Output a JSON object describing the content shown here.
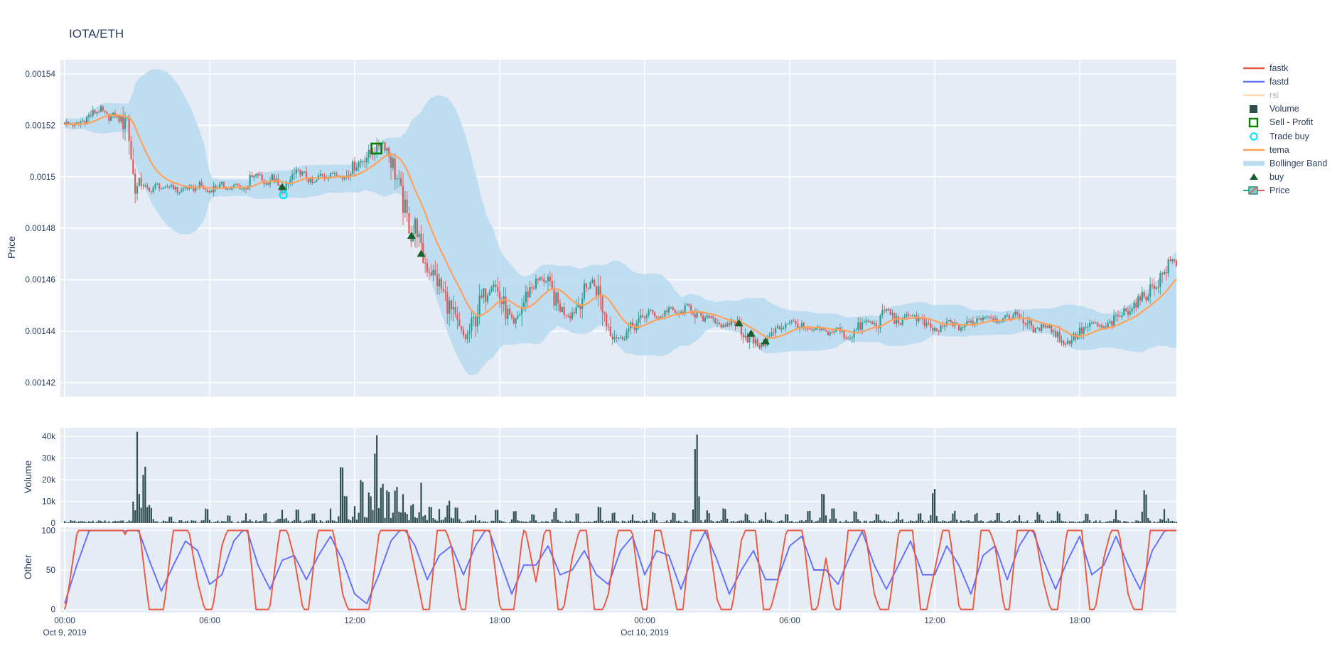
{
  "title": "IOTA/ETH",
  "colors": {
    "plot_bg": "#E5ECF6",
    "grid": "#FFFFFF",
    "text": "#2a3f5f",
    "candle_up": "#2A9D8F",
    "candle_down": "#E45756",
    "tema": "#FFA15A",
    "bollinger_fill": "#B9DCF1",
    "fastk": "#EF553B",
    "fastd": "#636EFA",
    "volume_bar": "#2F4F4F",
    "buy_marker": "#15602B",
    "sell_profit": "#008000",
    "trade_buy": "#00E5FF",
    "rsi_muted_line": "#FFD9B0",
    "rsi_muted_text": "#AFB9C5"
  },
  "legend": {
    "items": [
      {
        "id": "fastk",
        "label": "fastk",
        "glyph": "line",
        "color": "#EF553B",
        "text_color": "#2a3f5f"
      },
      {
        "id": "fastd",
        "label": "fastd",
        "glyph": "line",
        "color": "#636EFA",
        "text_color": "#2a3f5f"
      },
      {
        "id": "rsi",
        "label": "rsi",
        "glyph": "line",
        "color": "#FFD9B0",
        "text_color": "#AFB9C5",
        "muted": true
      },
      {
        "id": "volume",
        "label": "Volume",
        "glyph": "square-filled",
        "color": "#2F4F4F",
        "text_color": "#2a3f5f"
      },
      {
        "id": "sell-profit",
        "label": "Sell - Profit",
        "glyph": "square-open",
        "color": "#008000",
        "text_color": "#2a3f5f"
      },
      {
        "id": "trade-buy",
        "label": "Trade buy",
        "glyph": "circle-open",
        "color": "#00E5FF",
        "text_color": "#2a3f5f"
      },
      {
        "id": "tema",
        "label": "tema",
        "glyph": "line",
        "color": "#FFA15A",
        "text_color": "#2a3f5f"
      },
      {
        "id": "bollinger",
        "label": "Bollinger Band",
        "glyph": "band",
        "color": "#B9DCF1",
        "text_color": "#2a3f5f"
      },
      {
        "id": "buy",
        "label": "buy",
        "glyph": "triangle",
        "color": "#15602B",
        "text_color": "#2a3f5f"
      },
      {
        "id": "price",
        "label": "Price",
        "glyph": "candle",
        "color_up": "#2A9D8F",
        "color_down": "#E45756",
        "text_color": "#2a3f5f"
      }
    ]
  },
  "x_axis": {
    "t_min": 0,
    "t_max": 46,
    "hours_per_tick": 6,
    "ticks": [
      {
        "t": 0,
        "label": "00:00",
        "date": "Oct 9, 2019"
      },
      {
        "t": 6,
        "label": "06:00"
      },
      {
        "t": 12,
        "label": "12:00"
      },
      {
        "t": 18,
        "label": "18:00"
      },
      {
        "t": 24,
        "label": "00:00",
        "date": "Oct 10, 2019"
      },
      {
        "t": 30,
        "label": "06:00"
      },
      {
        "t": 36,
        "label": "12:00"
      },
      {
        "t": 42,
        "label": "18:00"
      }
    ]
  },
  "chart_data": [
    {
      "type": "candlestick",
      "name": "Price",
      "ylabel": "Price",
      "price_unit": "1e-6 ETH (micro)",
      "candle_interval_minutes": 5,
      "y_ticks": [
        {
          "label": "0.00154",
          "value": 1540
        },
        {
          "label": "0.00152",
          "value": 1520
        },
        {
          "label": "0.0015",
          "value": 1500
        },
        {
          "label": "0.00148",
          "value": 1480
        },
        {
          "label": "0.00146",
          "value": 1460
        },
        {
          "label": "0.00144",
          "value": 1440
        },
        {
          "label": "0.00142",
          "value": 1420
        }
      ],
      "ylim_micro": [
        1414,
        1546
      ],
      "close_anchors": [
        [
          0,
          1521
        ],
        [
          0.4,
          1520
        ],
        [
          0.8,
          1522
        ],
        [
          1.2,
          1525
        ],
        [
          1.5,
          1526
        ],
        [
          1.8,
          1523
        ],
        [
          2.1,
          1524
        ],
        [
          2.4,
          1521
        ],
        [
          2.55,
          1526
        ],
        [
          2.7,
          1512
        ],
        [
          2.85,
          1499
        ],
        [
          3.0,
          1495
        ],
        [
          3.2,
          1498
        ],
        [
          3.5,
          1494
        ],
        [
          3.8,
          1497
        ],
        [
          4.1,
          1495
        ],
        [
          4.4,
          1497
        ],
        [
          4.7,
          1494
        ],
        [
          5.0,
          1496
        ],
        [
          5.3,
          1495
        ],
        [
          5.6,
          1497
        ],
        [
          5.9,
          1494
        ],
        [
          6.2,
          1496
        ],
        [
          6.5,
          1497
        ],
        [
          6.8,
          1495
        ],
        [
          7.1,
          1497
        ],
        [
          7.4,
          1495
        ],
        [
          7.7,
          1499
        ],
        [
          8.0,
          1501
        ],
        [
          8.3,
          1497
        ],
        [
          8.6,
          1500
        ],
        [
          8.9,
          1495
        ],
        [
          9.1,
          1494
        ],
        [
          9.4,
          1500
        ],
        [
          9.7,
          1502
        ],
        [
          10.0,
          1500
        ],
        [
          10.3,
          1497
        ],
        [
          10.6,
          1501
        ],
        [
          10.9,
          1500
        ],
        [
          11.2,
          1502
        ],
        [
          11.5,
          1499
        ],
        [
          11.8,
          1503
        ],
        [
          12.1,
          1505
        ],
        [
          12.5,
          1508
        ],
        [
          12.9,
          1511
        ],
        [
          13.1,
          1514
        ],
        [
          13.3,
          1512
        ],
        [
          13.5,
          1507
        ],
        [
          13.7,
          1501
        ],
        [
          13.9,
          1493
        ],
        [
          14.1,
          1486
        ],
        [
          14.35,
          1477
        ],
        [
          14.55,
          1482
        ],
        [
          14.75,
          1470
        ],
        [
          14.95,
          1466
        ],
        [
          15.2,
          1463
        ],
        [
          15.5,
          1458
        ],
        [
          15.8,
          1452
        ],
        [
          16.1,
          1445
        ],
        [
          16.35,
          1440
        ],
        [
          16.6,
          1437
        ],
        [
          16.9,
          1443
        ],
        [
          17.2,
          1451
        ],
        [
          17.5,
          1456
        ],
        [
          17.75,
          1459
        ],
        [
          18.0,
          1453
        ],
        [
          18.3,
          1447
        ],
        [
          18.6,
          1442
        ],
        [
          18.9,
          1449
        ],
        [
          19.2,
          1456
        ],
        [
          19.5,
          1459
        ],
        [
          19.75,
          1461
        ],
        [
          20.0,
          1458
        ],
        [
          20.3,
          1452
        ],
        [
          20.6,
          1448
        ],
        [
          20.9,
          1446
        ],
        [
          21.2,
          1450
        ],
        [
          21.5,
          1455
        ],
        [
          21.8,
          1460
        ],
        [
          22.1,
          1455
        ],
        [
          22.4,
          1444
        ],
        [
          22.7,
          1439
        ],
        [
          23.0,
          1437
        ],
        [
          23.4,
          1441
        ],
        [
          23.8,
          1444
        ],
        [
          24.2,
          1448
        ],
        [
          24.6,
          1445
        ],
        [
          25.0,
          1449
        ],
        [
          25.4,
          1446
        ],
        [
          25.8,
          1450
        ],
        [
          26.1,
          1447
        ],
        [
          26.4,
          1444
        ],
        [
          26.7,
          1446
        ],
        [
          27.0,
          1444
        ],
        [
          27.3,
          1441
        ],
        [
          27.6,
          1444
        ],
        [
          27.9,
          1442
        ],
        [
          28.2,
          1438
        ],
        [
          28.5,
          1436
        ],
        [
          28.8,
          1434
        ],
        [
          29.1,
          1437
        ],
        [
          29.4,
          1440
        ],
        [
          29.7,
          1442
        ],
        [
          30.0,
          1444
        ],
        [
          30.4,
          1442
        ],
        [
          30.8,
          1440
        ],
        [
          31.2,
          1441
        ],
        [
          31.6,
          1439
        ],
        [
          32.0,
          1441
        ],
        [
          32.4,
          1437
        ],
        [
          32.8,
          1441
        ],
        [
          33.2,
          1444
        ],
        [
          33.6,
          1442
        ],
        [
          34.0,
          1449
        ],
        [
          34.3,
          1445
        ],
        [
          34.6,
          1443
        ],
        [
          35.0,
          1447
        ],
        [
          35.4,
          1444
        ],
        [
          35.8,
          1441
        ],
        [
          36.2,
          1440
        ],
        [
          36.6,
          1444
        ],
        [
          37.0,
          1441
        ],
        [
          37.4,
          1443
        ],
        [
          37.8,
          1445
        ],
        [
          38.2,
          1446
        ],
        [
          38.6,
          1444
        ],
        [
          39.0,
          1445
        ],
        [
          39.4,
          1447
        ],
        [
          39.8,
          1443
        ],
        [
          40.2,
          1440
        ],
        [
          40.6,
          1443
        ],
        [
          41.0,
          1439
        ],
        [
          41.4,
          1435
        ],
        [
          41.8,
          1438
        ],
        [
          42.2,
          1441
        ],
        [
          42.6,
          1443
        ],
        [
          43.0,
          1441
        ],
        [
          43.4,
          1444
        ],
        [
          43.8,
          1447
        ],
        [
          44.2,
          1450
        ],
        [
          44.6,
          1453
        ],
        [
          44.9,
          1456
        ],
        [
          45.2,
          1459
        ],
        [
          45.5,
          1463
        ],
        [
          45.8,
          1468
        ],
        [
          46.0,
          1466
        ]
      ],
      "overlays": {
        "tema": {
          "type": "double-ema",
          "alpha": 0.18,
          "color": "#FFA15A"
        },
        "bollinger": {
          "type": "rolling-band",
          "window": 40,
          "sigma_mult": 2.1,
          "pad_micro": 1.1,
          "color": "#B9DCF1"
        }
      },
      "markers": {
        "buy_triangles": [
          [
            9.0,
            1496
          ],
          [
            14.35,
            1477
          ],
          [
            14.75,
            1470
          ],
          [
            27.9,
            1443
          ],
          [
            28.4,
            1439
          ],
          [
            29.0,
            1436
          ]
        ],
        "trade_buy_circles": [
          [
            9.05,
            1493
          ]
        ],
        "sell_profit_squares": [
          [
            12.9,
            1511
          ]
        ]
      }
    },
    {
      "type": "bar",
      "name": "Volume",
      "ylabel": "Volume",
      "y_ticks": [
        {
          "label": "0",
          "value": 0
        },
        {
          "label": "10k",
          "value": 10000
        },
        {
          "label": "20k",
          "value": 20000
        },
        {
          "label": "30k",
          "value": 30000
        },
        {
          "label": "40k",
          "value": 40000
        }
      ],
      "ylim": [
        0,
        44000
      ],
      "base_noise_range": [
        120,
        1300
      ],
      "spikes": [
        [
          3.0,
          40500
        ],
        [
          3.3,
          24000
        ],
        [
          3.55,
          8000
        ],
        [
          4.4,
          3000
        ],
        [
          5.9,
          6500
        ],
        [
          6.8,
          3500
        ],
        [
          7.5,
          5000
        ],
        [
          8.3,
          4500
        ],
        [
          9.0,
          7000
        ],
        [
          9.6,
          5500
        ],
        [
          10.3,
          4200
        ],
        [
          11.0,
          6000
        ],
        [
          11.45,
          25500
        ],
        [
          11.65,
          13000
        ],
        [
          12.0,
          9000
        ],
        [
          12.3,
          20000
        ],
        [
          12.6,
          12500
        ],
        [
          12.9,
          35500
        ],
        [
          13.1,
          18000
        ],
        [
          13.4,
          15000
        ],
        [
          13.7,
          16500
        ],
        [
          14.0,
          15000
        ],
        [
          14.35,
          9000
        ],
        [
          14.75,
          16500
        ],
        [
          15.1,
          8000
        ],
        [
          15.5,
          6000
        ],
        [
          15.85,
          9500
        ],
        [
          16.2,
          6500
        ],
        [
          17.0,
          4200
        ],
        [
          17.9,
          6000
        ],
        [
          18.6,
          5000
        ],
        [
          19.4,
          4200
        ],
        [
          20.3,
          6000
        ],
        [
          21.2,
          4500
        ],
        [
          22.1,
          7000
        ],
        [
          22.7,
          5200
        ],
        [
          23.5,
          4000
        ],
        [
          24.4,
          5000
        ],
        [
          25.2,
          4500
        ],
        [
          26.1,
          38500
        ],
        [
          26.6,
          5200
        ],
        [
          27.3,
          6000
        ],
        [
          28.2,
          4500
        ],
        [
          29.0,
          5500
        ],
        [
          29.9,
          4200
        ],
        [
          30.8,
          5000
        ],
        [
          31.35,
          12500
        ],
        [
          31.8,
          7000
        ],
        [
          32.7,
          5200
        ],
        [
          33.6,
          4500
        ],
        [
          34.5,
          5500
        ],
        [
          35.4,
          4200
        ],
        [
          35.95,
          14500
        ],
        [
          36.8,
          5000
        ],
        [
          37.7,
          4500
        ],
        [
          38.6,
          5200
        ],
        [
          39.5,
          4000
        ],
        [
          40.3,
          4500
        ],
        [
          41.1,
          5000
        ],
        [
          42.3,
          4200
        ],
        [
          43.5,
          5500
        ],
        [
          44.7,
          15500
        ],
        [
          45.5,
          6500
        ]
      ]
    },
    {
      "type": "line",
      "name": "Other",
      "ylabel": "Other",
      "y_ticks": [
        {
          "label": "0",
          "value": 0
        },
        {
          "label": "50",
          "value": 50
        },
        {
          "label": "100",
          "value": 100
        }
      ],
      "ylim": [
        -4,
        104
      ],
      "sample_step_hours": 0.5,
      "series": [
        {
          "name": "fastk",
          "color": "#EF553B",
          "values": [
            12,
            80,
            100,
            95,
            100,
            80,
            100,
            15,
            0,
            85,
            100,
            40,
            0,
            70,
            100,
            100,
            0,
            20,
            100,
            60,
            0,
            90,
            100,
            30,
            0,
            0,
            80,
            100,
            100,
            50,
            0,
            100,
            70,
            0,
            100,
            100,
            20,
            0,
            90,
            40,
            100,
            0,
            60,
            100,
            0,
            30,
            100,
            80,
            0,
            100,
            50,
            0,
            100,
            100,
            25,
            0,
            75,
            100,
            0,
            40,
            100,
            90,
            0,
            60,
            0,
            100,
            100,
            30,
            0,
            80,
            100,
            0,
            50,
            100,
            20,
            0,
            100,
            70,
            0,
            100,
            100,
            40,
            0,
            90,
            100,
            0,
            60,
            100,
            30,
            0,
            100,
            95,
            100
          ]
        },
        {
          "name": "fastd",
          "color": "#636EFA",
          "values": [
            15,
            55,
            90,
            95,
            97,
            90,
            95,
            60,
            28,
            55,
            80,
            70,
            35,
            45,
            80,
            95,
            55,
            30,
            60,
            65,
            40,
            65,
            85,
            60,
            25,
            15,
            45,
            80,
            95,
            75,
            40,
            65,
            75,
            45,
            75,
            95,
            60,
            25,
            55,
            55,
            75,
            45,
            50,
            70,
            45,
            35,
            70,
            85,
            45,
            70,
            65,
            30,
            65,
            90,
            60,
            25,
            50,
            70,
            40,
            40,
            75,
            85,
            50,
            50,
            35,
            65,
            90,
            55,
            30,
            55,
            80,
            45,
            45,
            75,
            55,
            25,
            65,
            75,
            40,
            75,
            95,
            60,
            30,
            60,
            85,
            45,
            55,
            85,
            55,
            30,
            70,
            90,
            95
          ]
        },
        {
          "name": "rsi",
          "color": "#FFD9B0",
          "hidden": true,
          "values": []
        }
      ]
    }
  ]
}
